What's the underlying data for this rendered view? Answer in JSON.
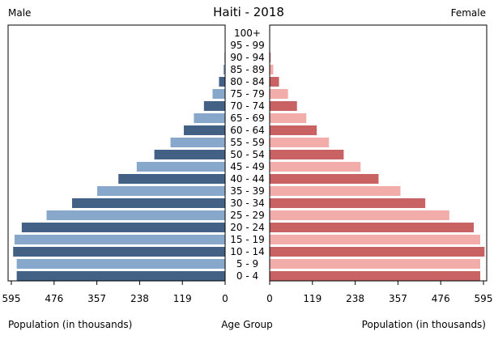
{
  "chart_data": {
    "type": "bar",
    "title": "Haiti - 2018",
    "left_label": "Male",
    "right_label": "Female",
    "xlabel_left": "Population (in thousands)",
    "xlabel_center": "Age Group",
    "xlabel_right": "Population (in thousands)",
    "categories": [
      "100+",
      "95 - 99",
      "90 - 94",
      "85 - 89",
      "80 - 84",
      "75 - 79",
      "70 - 74",
      "65 - 69",
      "60 - 64",
      "55 - 59",
      "50 - 54",
      "45 - 49",
      "40 - 44",
      "35 - 39",
      "30 - 34",
      "25 - 29",
      "20 - 24",
      "15 - 19",
      "10 - 14",
      "5 - 9",
      "0 - 4"
    ],
    "series": [
      {
        "name": "Male",
        "values": [
          0.1,
          0.5,
          1.5,
          5,
          17,
          35,
          59,
          87,
          115,
          152,
          197,
          246,
          297,
          356,
          426,
          497,
          566,
          586,
          590,
          580,
          580
        ]
      },
      {
        "name": "Female",
        "values": [
          0.2,
          0.8,
          2.5,
          10,
          26,
          51,
          76,
          102,
          131,
          165,
          206,
          253,
          303,
          364,
          433,
          500,
          568,
          586,
          598,
          586,
          586
        ]
      }
    ],
    "x_ticks_left": [
      "595",
      "476",
      "357",
      "238",
      "119",
      "0"
    ],
    "x_ticks_right": [
      "0",
      "119",
      "238",
      "357",
      "476",
      "595"
    ],
    "xlim": [
      0,
      595
    ],
    "colors": {
      "male_dark": "#426184",
      "male_light": "#87a8cb",
      "female_dark": "#c86263",
      "female_light": "#f2adab"
    }
  }
}
